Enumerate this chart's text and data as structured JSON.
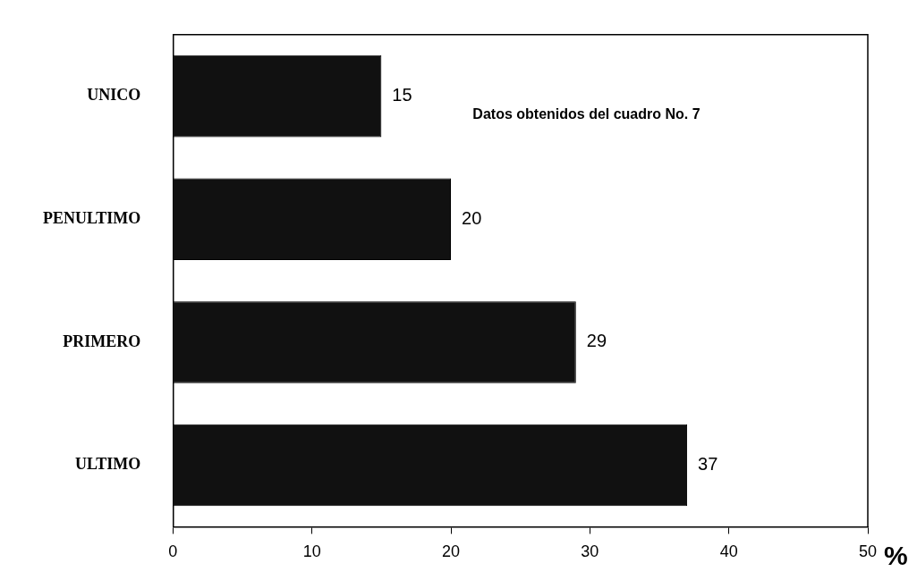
{
  "chart_data": {
    "type": "bar",
    "orientation": "horizontal",
    "categories": [
      "UNICO",
      "PENULTIMO",
      "PRIMERO",
      "ULTIMO"
    ],
    "values": [
      15,
      20,
      29,
      37
    ],
    "color": "#111111",
    "data_labels": true,
    "xlabel": "%",
    "xlim": [
      0,
      50
    ],
    "xticks": [
      0,
      10,
      20,
      30,
      40,
      50
    ],
    "grid": false,
    "legend": false,
    "annotations": [
      "Datos obtenidos del cuadro No. 7"
    ]
  }
}
